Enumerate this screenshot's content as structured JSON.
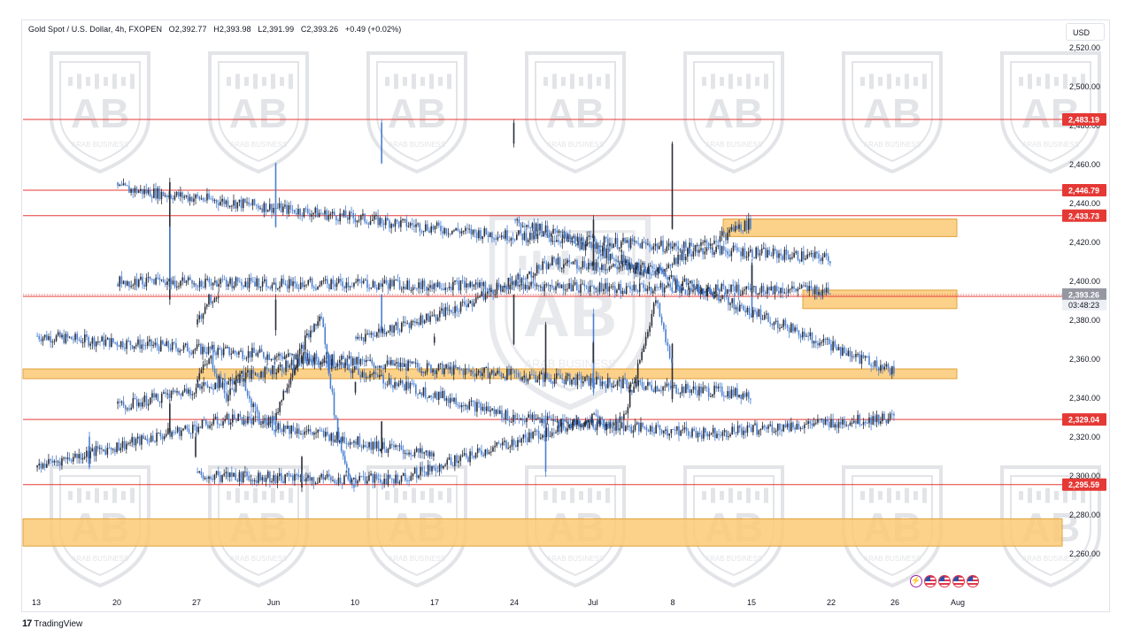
{
  "header": {
    "symbol": "Gold Spot / U.S. Dollar, 4h, FXOPEN",
    "open": "O2,392.77",
    "high": "H2,393.98",
    "low": "L2,391.99",
    "close": "C2,393.26",
    "change": "+0.49 (+0.02%)"
  },
  "currency": "USD",
  "footer": {
    "logo_text": "TradingView"
  },
  "watermark": {
    "brand_text": "ARAB BUSINESS"
  },
  "colors": {
    "up": "#2a2e39",
    "down": "#4a7fd2",
    "level_line": "#e53935",
    "level_label_bg": "#e53935",
    "zone_fill": "#fbc974",
    "zone_border": "#e0a23c",
    "price_label_bg": "#9598a1",
    "countdown_bg": "#eceff4"
  },
  "chart_data": {
    "type": "candlestick",
    "title": "Gold Spot / U.S. Dollar, 4h, FXOPEN",
    "ylim": [
      2255,
      2528
    ],
    "y_ticks": [
      "2,520.00",
      "2,500.00",
      "2,480.00",
      "2,460.00",
      "2,440.00",
      "2,420.00",
      "2,400.00",
      "2,380.00",
      "2,360.00",
      "2,340.00",
      "2,320.00",
      "2,300.00",
      "2,280.00",
      "2,260.00"
    ],
    "x_ticks": [
      "13",
      "20",
      "27",
      "Jun",
      "10",
      "17",
      "24",
      "Jul",
      "8",
      "15",
      "22",
      "26",
      "Aug"
    ],
    "price_path": [
      [
        "13",
        2372
      ],
      [
        "15",
        2342
      ],
      [
        "16",
        2365
      ],
      [
        "17",
        2395
      ],
      [
        "18",
        2377
      ],
      [
        "19",
        2392
      ],
      [
        "20",
        2448
      ],
      [
        "21",
        2425
      ],
      [
        "22",
        2412
      ],
      [
        "23",
        2383
      ],
      [
        "24",
        2345
      ],
      [
        "27",
        2350
      ],
      [
        "28",
        2360
      ],
      [
        "29",
        2340
      ],
      [
        "30",
        2352
      ],
      [
        "31",
        2330
      ],
      [
        "Jun",
        2328
      ],
      [
        "4",
        2350
      ],
      [
        "5",
        2370
      ],
      [
        "6",
        2382
      ],
      [
        "7",
        2320
      ],
      [
        "10",
        2292
      ],
      [
        "11",
        2310
      ],
      [
        "12",
        2318
      ],
      [
        "13",
        2305
      ],
      [
        "14",
        2330
      ],
      [
        "17",
        2310
      ],
      [
        "18",
        2330
      ],
      [
        "19",
        2325
      ],
      [
        "20",
        2335
      ],
      [
        "21",
        2360
      ],
      [
        "24",
        2330
      ],
      [
        "25",
        2322
      ],
      [
        "26",
        2330
      ],
      [
        "27",
        2300
      ],
      [
        "28",
        2298
      ],
      [
        "Jul",
        2330
      ],
      [
        "2",
        2325
      ],
      [
        "3",
        2330
      ],
      [
        "4",
        2360
      ],
      [
        "5",
        2390
      ],
      [
        "8",
        2358
      ],
      [
        "9",
        2366
      ],
      [
        "10",
        2370
      ],
      [
        "11",
        2385
      ],
      [
        "12",
        2410
      ],
      [
        "14",
        2405
      ],
      [
        "15",
        2430
      ],
      [
        "16",
        2470
      ],
      [
        "17",
        2483
      ],
      [
        "18",
        2462
      ],
      [
        "19",
        2430
      ],
      [
        "20",
        2400
      ],
      [
        "22",
        2395
      ],
      [
        "23",
        2410
      ],
      [
        "24",
        2432
      ],
      [
        "25",
        2395
      ],
      [
        "26",
        2353
      ],
      [
        "27",
        2375
      ],
      [
        "28",
        2390
      ],
      [
        "29",
        2393.26
      ]
    ],
    "horizontal_levels": [
      {
        "price": 2483.19,
        "label": "2,483.19"
      },
      {
        "price": 2446.79,
        "label": "2,446.79"
      },
      {
        "price": 2433.73,
        "label": "2,433.73"
      },
      {
        "price": 2392.3,
        "label": "2,392.30"
      },
      {
        "price": 2329.04,
        "label": "2,329.04"
      },
      {
        "price": 2295.59,
        "label": "2,295.59"
      }
    ],
    "zones": [
      {
        "from": 2423,
        "to": 2432,
        "start": "15",
        "end": "26"
      },
      {
        "from": 2386,
        "to": 2395.5,
        "start": "22",
        "end": "26"
      },
      {
        "from": 2350,
        "to": 2355,
        "start": "13",
        "end": "26"
      },
      {
        "from": 2264,
        "to": 2278,
        "start": "13",
        "end": "Aug"
      }
    ],
    "current_price": {
      "label": "2,393.26",
      "countdown": "03:48:23"
    }
  }
}
